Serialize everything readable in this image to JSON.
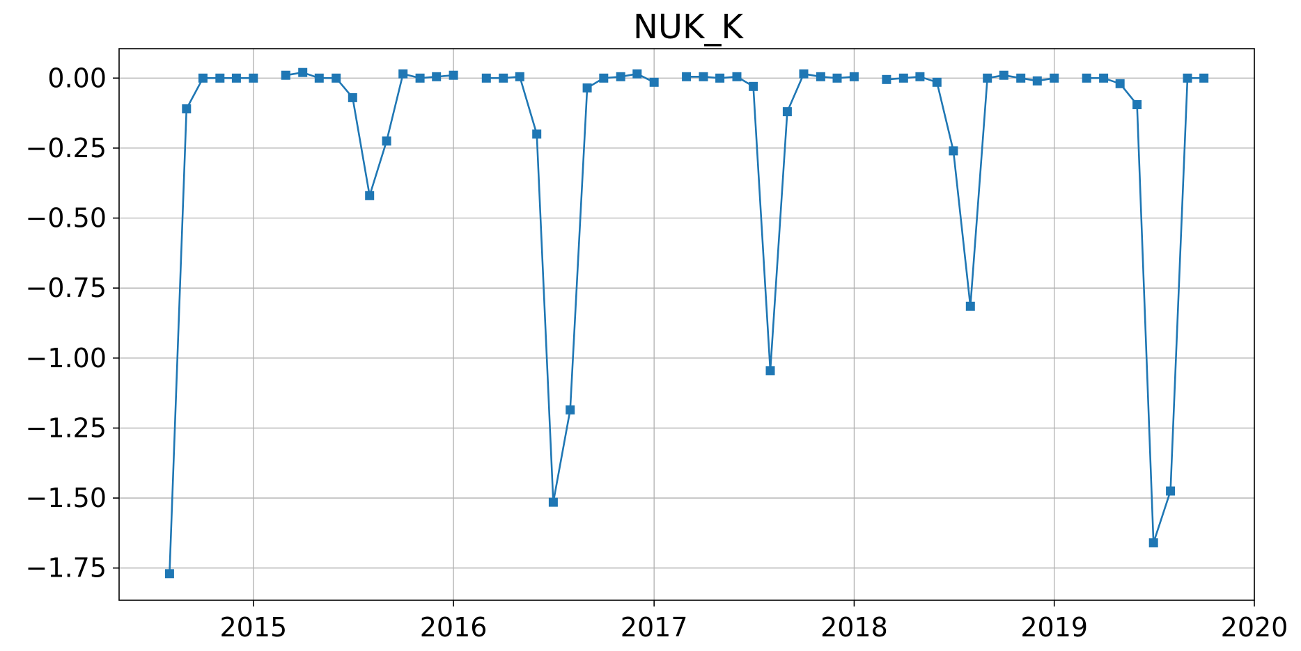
{
  "chart_data": {
    "type": "line",
    "title": "NUK_K",
    "xlabel": "",
    "ylabel": "",
    "x_axis": {
      "kind": "date",
      "ticks": [
        "2015",
        "2016",
        "2017",
        "2018",
        "2019",
        "2020"
      ],
      "range": [
        "2014-05-01",
        "2020-01-01"
      ]
    },
    "y_axis": {
      "ticks": [
        "0.00",
        "−0.25",
        "−0.50",
        "−0.75",
        "−1.00",
        "−1.25",
        "−1.50",
        "−1.75"
      ],
      "tick_values": [
        0,
        -0.25,
        -0.5,
        -0.75,
        -1.0,
        -1.25,
        -1.5,
        -1.75
      ],
      "range": [
        -1.865,
        0.105
      ]
    },
    "grid": true,
    "marker": "square",
    "color": "#1f77b4",
    "series": [
      {
        "segments": [
          [
            {
              "x": "2014-08",
              "y": -1.77
            },
            {
              "x": "2014-09",
              "y": -0.11
            },
            {
              "x": "2014-10",
              "y": 0.0
            },
            {
              "x": "2014-11",
              "y": 0.0
            },
            {
              "x": "2014-12",
              "y": 0.0
            },
            {
              "x": "2015-01",
              "y": 0.0
            }
          ],
          [
            {
              "x": "2015-03",
              "y": 0.01
            },
            {
              "x": "2015-04",
              "y": 0.02
            },
            {
              "x": "2015-05",
              "y": 0.0
            },
            {
              "x": "2015-06",
              "y": 0.0
            },
            {
              "x": "2015-07",
              "y": -0.07
            },
            {
              "x": "2015-08",
              "y": -0.42
            },
            {
              "x": "2015-09",
              "y": -0.225
            },
            {
              "x": "2015-10",
              "y": 0.015
            },
            {
              "x": "2015-11",
              "y": 0.0
            },
            {
              "x": "2015-12",
              "y": 0.005
            },
            {
              "x": "2016-01",
              "y": 0.01
            }
          ],
          [
            {
              "x": "2016-03",
              "y": 0.0
            },
            {
              "x": "2016-04",
              "y": 0.0
            },
            {
              "x": "2016-05",
              "y": 0.005
            },
            {
              "x": "2016-06",
              "y": -0.2
            },
            {
              "x": "2016-07",
              "y": -1.515
            },
            {
              "x": "2016-08",
              "y": -1.185
            },
            {
              "x": "2016-09",
              "y": -0.035
            },
            {
              "x": "2016-10",
              "y": 0.0
            },
            {
              "x": "2016-11",
              "y": 0.005
            },
            {
              "x": "2016-12",
              "y": 0.015
            },
            {
              "x": "2017-01",
              "y": -0.015
            }
          ],
          [
            {
              "x": "2017-03",
              "y": 0.005
            },
            {
              "x": "2017-04",
              "y": 0.005
            },
            {
              "x": "2017-05",
              "y": 0.0
            },
            {
              "x": "2017-06",
              "y": 0.005
            },
            {
              "x": "2017-07",
              "y": -0.03
            },
            {
              "x": "2017-08",
              "y": -1.045
            },
            {
              "x": "2017-09",
              "y": -0.12
            },
            {
              "x": "2017-10",
              "y": 0.015
            },
            {
              "x": "2017-11",
              "y": 0.005
            },
            {
              "x": "2017-12",
              "y": 0.0
            },
            {
              "x": "2018-01",
              "y": 0.005
            }
          ],
          [
            {
              "x": "2018-03",
              "y": -0.005
            },
            {
              "x": "2018-04",
              "y": 0.0
            },
            {
              "x": "2018-05",
              "y": 0.005
            },
            {
              "x": "2018-06",
              "y": -0.015
            },
            {
              "x": "2018-07",
              "y": -0.26
            },
            {
              "x": "2018-08",
              "y": -0.815
            },
            {
              "x": "2018-09",
              "y": 0.0
            },
            {
              "x": "2018-10",
              "y": 0.01
            },
            {
              "x": "2018-11",
              "y": 0.0
            },
            {
              "x": "2018-12",
              "y": -0.01
            },
            {
              "x": "2019-01",
              "y": 0.0
            }
          ],
          [
            {
              "x": "2019-03",
              "y": 0.0
            },
            {
              "x": "2019-04",
              "y": 0.0
            },
            {
              "x": "2019-05",
              "y": -0.02
            },
            {
              "x": "2019-06",
              "y": -0.095
            },
            {
              "x": "2019-07",
              "y": -1.66
            },
            {
              "x": "2019-08",
              "y": -1.475
            },
            {
              "x": "2019-09",
              "y": 0.0
            },
            {
              "x": "2019-10",
              "y": 0.0
            }
          ]
        ]
      }
    ]
  }
}
